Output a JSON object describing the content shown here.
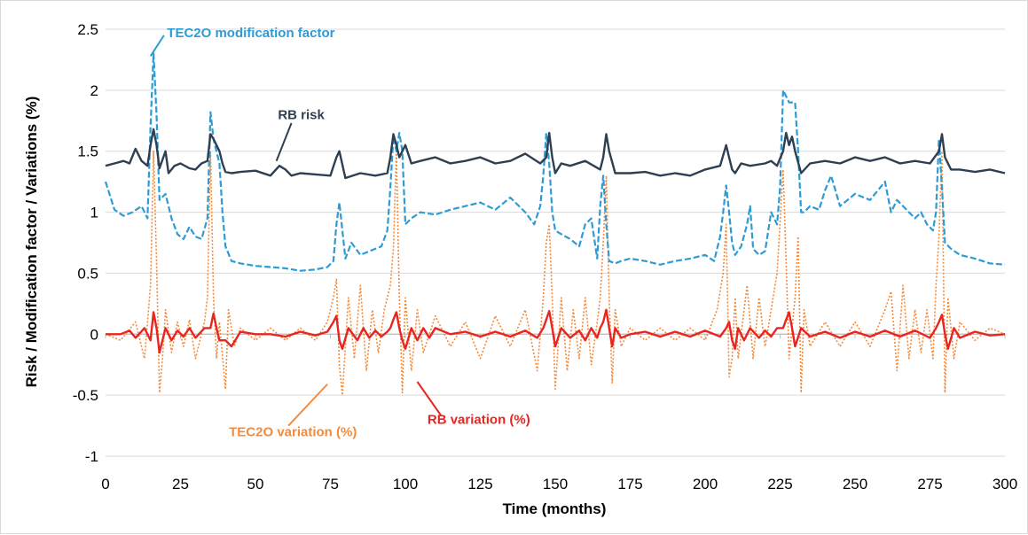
{
  "chart_data": {
    "type": "line",
    "title": "",
    "xlabel": "Time (months)",
    "ylabel": "Risk / Modification factor / Variations (%)",
    "xlim": [
      0,
      300
    ],
    "ylim": [
      -1,
      2.5
    ],
    "xticks": [
      0,
      25,
      50,
      75,
      100,
      125,
      150,
      175,
      200,
      225,
      250,
      275,
      300
    ],
    "yticks": [
      -1,
      -0.5,
      0,
      0.5,
      1,
      1.5,
      2,
      2.5
    ],
    "grid": "horizontal",
    "legend": "none (series labelled directly with callout lines)",
    "series": [
      {
        "name": "TEC2O modification factor",
        "color": "#2e9bd3",
        "style": "dashed",
        "x": [
          0,
          3,
          6,
          9,
          12,
          14,
          15,
          16,
          17,
          18,
          20,
          22,
          24,
          26,
          28,
          30,
          32,
          34,
          35,
          36,
          38,
          39,
          40,
          42,
          45,
          50,
          55,
          60,
          65,
          70,
          74,
          76,
          77,
          78,
          80,
          82,
          85,
          88,
          90,
          92,
          94,
          95,
          96,
          97,
          98,
          99,
          100,
          102,
          105,
          110,
          115,
          120,
          125,
          130,
          135,
          140,
          143,
          145,
          146,
          147,
          148,
          149,
          150,
          152,
          155,
          158,
          160,
          162,
          164,
          165,
          166,
          167,
          168,
          170,
          172,
          175,
          180,
          185,
          190,
          195,
          200,
          203,
          205,
          206,
          207,
          208,
          209,
          210,
          212,
          214,
          215,
          216,
          218,
          220,
          222,
          224,
          225,
          226,
          227,
          228,
          230,
          231,
          232,
          233,
          235,
          238,
          240,
          242,
          245,
          250,
          255,
          260,
          262,
          264,
          266,
          268,
          270,
          272,
          274,
          276,
          277,
          278,
          279,
          280,
          282,
          285,
          290,
          295,
          300
        ],
        "y": [
          1.25,
          1.02,
          0.97,
          1.0,
          1.05,
          0.95,
          1.7,
          2.3,
          1.8,
          1.1,
          1.15,
          0.95,
          0.82,
          0.78,
          0.88,
          0.8,
          0.78,
          0.95,
          1.82,
          1.6,
          1.4,
          1.0,
          0.72,
          0.6,
          0.58,
          0.56,
          0.55,
          0.54,
          0.52,
          0.53,
          0.55,
          0.6,
          0.9,
          1.08,
          0.62,
          0.75,
          0.65,
          0.68,
          0.7,
          0.72,
          0.85,
          1.2,
          1.62,
          1.5,
          1.65,
          1.5,
          0.9,
          0.95,
          1.0,
          0.98,
          1.02,
          1.05,
          1.08,
          1.02,
          1.12,
          1.0,
          0.9,
          1.05,
          1.3,
          1.65,
          1.4,
          1.0,
          0.85,
          0.82,
          0.78,
          0.72,
          0.9,
          0.95,
          0.62,
          1.05,
          1.3,
          0.9,
          0.6,
          0.58,
          0.6,
          0.62,
          0.6,
          0.57,
          0.6,
          0.62,
          0.65,
          0.6,
          0.8,
          1.0,
          1.22,
          1.0,
          0.75,
          0.65,
          0.72,
          0.9,
          1.05,
          0.7,
          0.65,
          0.68,
          1.0,
          0.9,
          1.2,
          2.0,
          1.95,
          1.9,
          1.9,
          1.5,
          1.0,
          1.0,
          1.05,
          1.02,
          1.18,
          1.3,
          1.05,
          1.15,
          1.1,
          1.25,
          1.0,
          1.1,
          1.05,
          1.0,
          0.95,
          1.0,
          0.9,
          0.85,
          1.0,
          1.6,
          1.2,
          0.75,
          0.7,
          0.65,
          0.62,
          0.58,
          0.57
        ]
      },
      {
        "name": "RB risk",
        "color": "#2f3f52",
        "style": "solid",
        "x": [
          0,
          3,
          6,
          8,
          10,
          12,
          14,
          15,
          16,
          17,
          18,
          20,
          21,
          23,
          25,
          28,
          30,
          32,
          34,
          35,
          36,
          38,
          39,
          40,
          42,
          45,
          50,
          55,
          58,
          60,
          62,
          65,
          70,
          75,
          77,
          78,
          80,
          85,
          90,
          94,
          95,
          96,
          97,
          98,
          100,
          102,
          105,
          110,
          115,
          120,
          125,
          130,
          135,
          140,
          145,
          147,
          148,
          149,
          150,
          152,
          155,
          160,
          165,
          166,
          167,
          168,
          170,
          175,
          180,
          185,
          190,
          195,
          200,
          205,
          207,
          208,
          209,
          210,
          212,
          215,
          220,
          222,
          224,
          226,
          227,
          228,
          229,
          230,
          232,
          235,
          240,
          245,
          250,
          255,
          260,
          265,
          270,
          275,
          278,
          279,
          280,
          282,
          285,
          290,
          295,
          300
        ],
        "y": [
          1.38,
          1.4,
          1.42,
          1.4,
          1.52,
          1.42,
          1.38,
          1.55,
          1.68,
          1.55,
          1.36,
          1.5,
          1.32,
          1.38,
          1.4,
          1.36,
          1.35,
          1.4,
          1.42,
          1.64,
          1.6,
          1.5,
          1.4,
          1.33,
          1.32,
          1.33,
          1.34,
          1.3,
          1.38,
          1.35,
          1.3,
          1.32,
          1.31,
          1.3,
          1.45,
          1.5,
          1.28,
          1.32,
          1.3,
          1.32,
          1.45,
          1.64,
          1.55,
          1.45,
          1.55,
          1.4,
          1.42,
          1.45,
          1.4,
          1.42,
          1.45,
          1.4,
          1.42,
          1.48,
          1.4,
          1.45,
          1.65,
          1.45,
          1.32,
          1.4,
          1.38,
          1.42,
          1.35,
          1.45,
          1.64,
          1.5,
          1.32,
          1.32,
          1.33,
          1.3,
          1.32,
          1.3,
          1.35,
          1.38,
          1.55,
          1.45,
          1.35,
          1.32,
          1.4,
          1.38,
          1.4,
          1.42,
          1.38,
          1.5,
          1.65,
          1.55,
          1.62,
          1.5,
          1.32,
          1.4,
          1.42,
          1.4,
          1.45,
          1.42,
          1.45,
          1.4,
          1.42,
          1.4,
          1.5,
          1.64,
          1.45,
          1.35,
          1.35,
          1.33,
          1.35,
          1.32
        ]
      },
      {
        "name": "TEC2O variation (%)",
        "color": "#f58a3a",
        "style": "dotted",
        "x": [
          0,
          5,
          10,
          13,
          15,
          16,
          17,
          18,
          19,
          20,
          22,
          24,
          26,
          28,
          30,
          33,
          34,
          35,
          36,
          37,
          38,
          40,
          41,
          43,
          45,
          50,
          55,
          60,
          65,
          70,
          74,
          76,
          77,
          78,
          79,
          81,
          83,
          85,
          87,
          89,
          91,
          93,
          95,
          96,
          97,
          98,
          99,
          100,
          102,
          104,
          106,
          110,
          115,
          120,
          125,
          130,
          135,
          140,
          144,
          146,
          147,
          148,
          149,
          150,
          152,
          154,
          156,
          158,
          160,
          162,
          164,
          165,
          166,
          167,
          168,
          169,
          170,
          172,
          175,
          180,
          185,
          190,
          195,
          200,
          204,
          206,
          207,
          208,
          209,
          210,
          211,
          213,
          214,
          216,
          218,
          220,
          222,
          224,
          226,
          227,
          228,
          230,
          231,
          232,
          233,
          235,
          240,
          245,
          250,
          255,
          260,
          262,
          264,
          266,
          268,
          270,
          272,
          274,
          276,
          277,
          278,
          279,
          280,
          281,
          283,
          285,
          290,
          295,
          300
        ],
        "y": [
          0.0,
          -0.05,
          0.1,
          -0.2,
          0.4,
          1.5,
          0.6,
          -0.48,
          -0.2,
          0.2,
          -0.15,
          0.1,
          -0.1,
          0.12,
          -0.2,
          0.1,
          0.3,
          1.5,
          0.3,
          -0.2,
          0.1,
          -0.45,
          0.2,
          -0.1,
          0.05,
          -0.05,
          0.05,
          -0.05,
          0.05,
          -0.05,
          0.1,
          0.3,
          0.45,
          -0.25,
          -0.5,
          0.3,
          -0.2,
          0.4,
          -0.3,
          0.2,
          -0.15,
          0.2,
          0.4,
          0.7,
          1.5,
          0.3,
          -0.48,
          0.3,
          -0.3,
          0.2,
          -0.15,
          0.15,
          -0.1,
          0.1,
          -0.2,
          0.15,
          -0.1,
          0.2,
          -0.3,
          0.3,
          0.75,
          0.9,
          0.3,
          -0.45,
          0.3,
          -0.3,
          0.2,
          -0.2,
          0.3,
          -0.25,
          0.1,
          0.3,
          0.75,
          1.3,
          0.3,
          -0.4,
          0.2,
          -0.1,
          0.05,
          -0.05,
          0.05,
          -0.05,
          0.05,
          -0.05,
          0.2,
          0.5,
          0.9,
          -0.35,
          -0.2,
          0.3,
          -0.2,
          0.2,
          0.4,
          -0.2,
          0.3,
          -0.1,
          0.2,
          0.5,
          1.35,
          0.6,
          -0.2,
          0.3,
          0.8,
          -0.48,
          0.2,
          -0.1,
          0.1,
          -0.1,
          0.1,
          -0.1,
          0.2,
          0.35,
          -0.3,
          0.4,
          -0.2,
          0.2,
          -0.15,
          0.2,
          -0.2,
          0.4,
          0.8,
          1.5,
          -0.48,
          0.3,
          -0.2,
          0.1,
          -0.05,
          0.05,
          0.0
        ]
      },
      {
        "name": "RB variation (%)",
        "color": "#e8251f",
        "style": "solid",
        "x": [
          0,
          5,
          8,
          10,
          13,
          15,
          16,
          17,
          18,
          19,
          20,
          22,
          24,
          26,
          28,
          30,
          33,
          35,
          36,
          37,
          38,
          39,
          40,
          42,
          45,
          50,
          55,
          60,
          65,
          70,
          74,
          76,
          77,
          78,
          79,
          81,
          84,
          86,
          88,
          90,
          92,
          94,
          95,
          96,
          97,
          98,
          99,
          100,
          102,
          104,
          106,
          108,
          110,
          115,
          120,
          125,
          130,
          135,
          140,
          144,
          146,
          147,
          148,
          149,
          150,
          152,
          155,
          158,
          160,
          162,
          164,
          165,
          166,
          167,
          168,
          169,
          170,
          172,
          175,
          180,
          185,
          190,
          195,
          200,
          205,
          207,
          208,
          209,
          210,
          211,
          213,
          215,
          218,
          220,
          222,
          224,
          226,
          227,
          228,
          229,
          230,
          232,
          235,
          240,
          245,
          250,
          255,
          260,
          265,
          270,
          275,
          277,
          278,
          279,
          280,
          281,
          283,
          285,
          290,
          295,
          300
        ],
        "y": [
          0.0,
          0.0,
          0.03,
          -0.03,
          0.05,
          -0.05,
          0.18,
          0.05,
          -0.15,
          -0.05,
          0.05,
          -0.05,
          0.03,
          -0.02,
          0.05,
          -0.03,
          0.05,
          0.05,
          0.17,
          0.05,
          -0.05,
          -0.05,
          -0.05,
          -0.1,
          0.02,
          0.0,
          0.0,
          -0.02,
          0.02,
          -0.01,
          0.02,
          0.1,
          0.15,
          -0.05,
          -0.12,
          0.05,
          -0.05,
          0.05,
          -0.03,
          0.03,
          -0.02,
          0.02,
          0.05,
          0.12,
          0.18,
          0.05,
          -0.05,
          -0.12,
          0.05,
          -0.05,
          0.05,
          -0.03,
          0.05,
          0.0,
          0.02,
          -0.02,
          0.02,
          -0.02,
          0.03,
          -0.03,
          0.05,
          0.12,
          0.19,
          0.05,
          -0.1,
          0.05,
          -0.03,
          0.03,
          -0.05,
          0.05,
          -0.03,
          0.05,
          0.1,
          0.2,
          0.05,
          -0.1,
          0.05,
          -0.03,
          0.0,
          0.02,
          -0.02,
          0.02,
          -0.02,
          0.03,
          -0.02,
          0.05,
          0.1,
          -0.05,
          -0.12,
          0.05,
          -0.05,
          0.05,
          -0.03,
          0.03,
          -0.02,
          0.05,
          0.05,
          0.12,
          0.18,
          0.05,
          -0.1,
          0.05,
          -0.02,
          0.02,
          -0.03,
          0.02,
          -0.02,
          0.03,
          -0.02,
          0.03,
          -0.03,
          0.05,
          0.1,
          0.16,
          0.0,
          -0.12,
          0.05,
          -0.03,
          0.02,
          -0.01,
          0.0
        ]
      }
    ]
  }
}
